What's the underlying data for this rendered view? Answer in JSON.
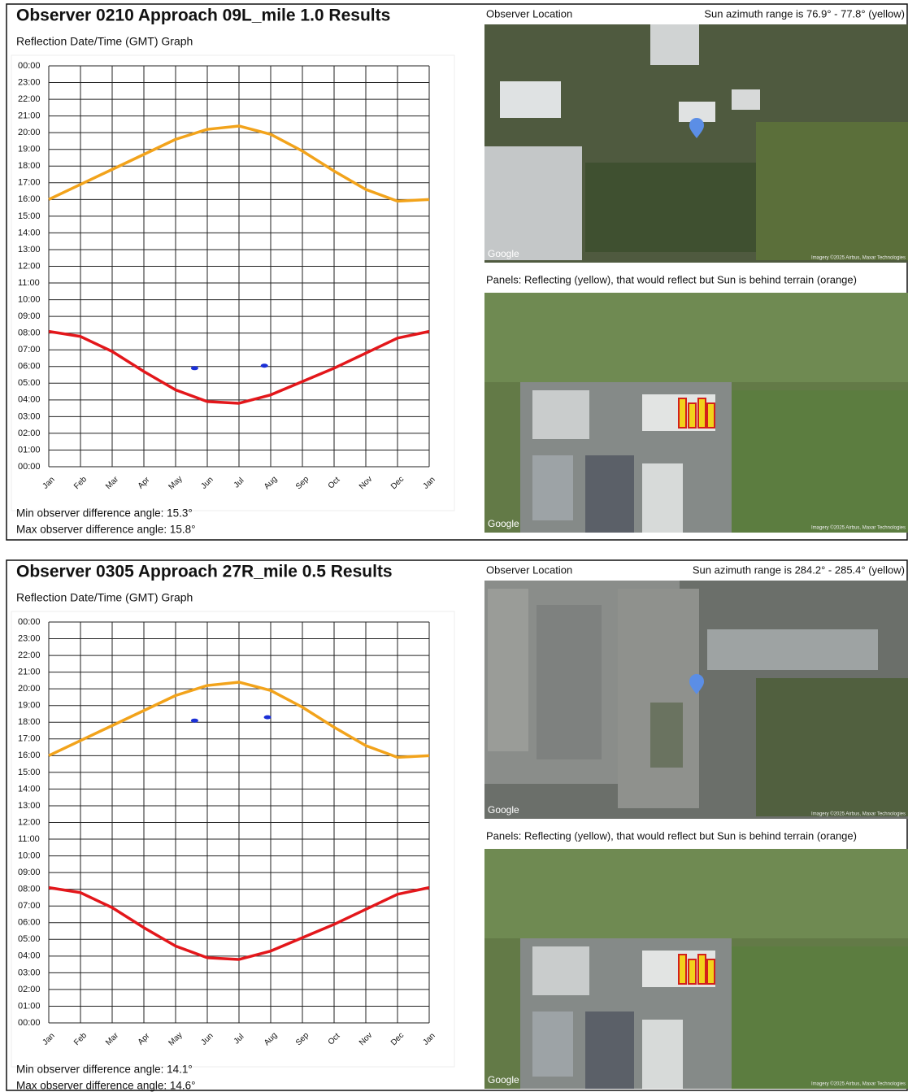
{
  "chart_data": [
    {
      "type": "line",
      "title": "Observer 0210 Approach 09L_mile 1.0 Results",
      "subtitle": "Reflection Date/Time (GMT) Graph",
      "categories": [
        "Jan",
        "Feb",
        "Mar",
        "Apr",
        "May",
        "Jun",
        "Jul",
        "Aug",
        "Sep",
        "Oct",
        "Nov",
        "Dec",
        "Jan"
      ],
      "xlim": [
        0,
        12
      ],
      "ylim": [
        0,
        24
      ],
      "yticks": [
        {
          "value": 0,
          "label": "00:00"
        },
        {
          "value": 1,
          "label": "01:00"
        },
        {
          "value": 2,
          "label": "02:00"
        },
        {
          "value": 3,
          "label": "03:00"
        },
        {
          "value": 4,
          "label": "04:00"
        },
        {
          "value": 5,
          "label": "05:00"
        },
        {
          "value": 6,
          "label": "06:00"
        },
        {
          "value": 7,
          "label": "07:00"
        },
        {
          "value": 8,
          "label": "08:00"
        },
        {
          "value": 9,
          "label": "09:00"
        },
        {
          "value": 10,
          "label": "10:00"
        },
        {
          "value": 11,
          "label": "11:00"
        },
        {
          "value": 12,
          "label": "12:00"
        },
        {
          "value": 13,
          "label": "13:00"
        },
        {
          "value": 14,
          "label": "14:00"
        },
        {
          "value": 15,
          "label": "15:00"
        },
        {
          "value": 16,
          "label": "16:00"
        },
        {
          "value": 17,
          "label": "17:00"
        },
        {
          "value": 18,
          "label": "18:00"
        },
        {
          "value": 19,
          "label": "19:00"
        },
        {
          "value": 20,
          "label": "20:00"
        },
        {
          "value": 21,
          "label": "21:00"
        },
        {
          "value": 22,
          "label": "22:00"
        },
        {
          "value": 23,
          "label": "23:00"
        },
        {
          "value": 24,
          "label": "00:00"
        }
      ],
      "grid": true,
      "series": [
        {
          "color": "#f2a31b",
          "values": [
            16.0,
            16.9,
            17.8,
            18.7,
            19.6,
            20.2,
            20.4,
            19.9,
            18.9,
            17.7,
            16.6,
            15.9,
            16.0
          ]
        },
        {
          "color": "#e3171b",
          "values": [
            8.1,
            7.8,
            6.9,
            5.7,
            4.6,
            3.9,
            3.8,
            4.3,
            5.1,
            5.9,
            6.8,
            7.7,
            8.1
          ]
        }
      ],
      "glare": {
        "color": "#1a2fd6",
        "x": [
          4.6,
          6.8
        ],
        "values": [
          5.9,
          6.05
        ]
      },
      "annotations": [
        "Min observer difference angle: 15.3°",
        "Max observer difference angle: 15.8°"
      ]
    },
    {
      "type": "line",
      "title": "Observer 0305 Approach 27R_mile 0.5 Results",
      "subtitle": "Reflection Date/Time (GMT) Graph",
      "categories": [
        "Jan",
        "Feb",
        "Mar",
        "Apr",
        "May",
        "Jun",
        "Jul",
        "Aug",
        "Sep",
        "Oct",
        "Nov",
        "Dec",
        "Jan"
      ],
      "xlim": [
        0,
        12
      ],
      "ylim": [
        0,
        24
      ],
      "yticks": [
        {
          "value": 0,
          "label": "00:00"
        },
        {
          "value": 1,
          "label": "01:00"
        },
        {
          "value": 2,
          "label": "02:00"
        },
        {
          "value": 3,
          "label": "03:00"
        },
        {
          "value": 4,
          "label": "04:00"
        },
        {
          "value": 5,
          "label": "05:00"
        },
        {
          "value": 6,
          "label": "06:00"
        },
        {
          "value": 7,
          "label": "07:00"
        },
        {
          "value": 8,
          "label": "08:00"
        },
        {
          "value": 9,
          "label": "09:00"
        },
        {
          "value": 10,
          "label": "10:00"
        },
        {
          "value": 11,
          "label": "11:00"
        },
        {
          "value": 12,
          "label": "12:00"
        },
        {
          "value": 13,
          "label": "13:00"
        },
        {
          "value": 14,
          "label": "14:00"
        },
        {
          "value": 15,
          "label": "15:00"
        },
        {
          "value": 16,
          "label": "16:00"
        },
        {
          "value": 17,
          "label": "17:00"
        },
        {
          "value": 18,
          "label": "18:00"
        },
        {
          "value": 19,
          "label": "19:00"
        },
        {
          "value": 20,
          "label": "20:00"
        },
        {
          "value": 21,
          "label": "21:00"
        },
        {
          "value": 22,
          "label": "22:00"
        },
        {
          "value": 23,
          "label": "23:00"
        },
        {
          "value": 24,
          "label": "00:00"
        }
      ],
      "grid": true,
      "series": [
        {
          "color": "#f2a31b",
          "values": [
            16.0,
            16.9,
            17.8,
            18.7,
            19.6,
            20.2,
            20.4,
            19.9,
            18.9,
            17.7,
            16.6,
            15.9,
            16.0
          ]
        },
        {
          "color": "#e3171b",
          "values": [
            8.1,
            7.8,
            6.9,
            5.7,
            4.6,
            3.9,
            3.8,
            4.3,
            5.1,
            5.9,
            6.8,
            7.7,
            8.1
          ]
        }
      ],
      "glare": {
        "color": "#1a2fd6",
        "x": [
          4.6,
          6.9
        ],
        "values": [
          18.1,
          18.3
        ]
      },
      "annotations": [
        "Min observer difference angle: 14.1°",
        "Max observer difference angle: 14.6°"
      ]
    }
  ],
  "maps": [
    {
      "location_label": "Observer Location",
      "azimuth": "Sun azimuth range is 76.9° - 77.8° (yellow)",
      "panels_label": "Panels: Reflecting (yellow), that would reflect but Sun is behind terrain (orange)",
      "brand": "Google",
      "credit": "Imagery ©2025 Airbus, Maxar Technologies"
    },
    {
      "location_label": "Observer Location",
      "azimuth": "Sun azimuth range is 284.2° - 285.4° (yellow)",
      "panels_label": "Panels: Reflecting (yellow), that would reflect but Sun is behind terrain (orange)",
      "brand": "Google",
      "credit": "Imagery ©2025 Airbus, Maxar Technologies"
    }
  ]
}
